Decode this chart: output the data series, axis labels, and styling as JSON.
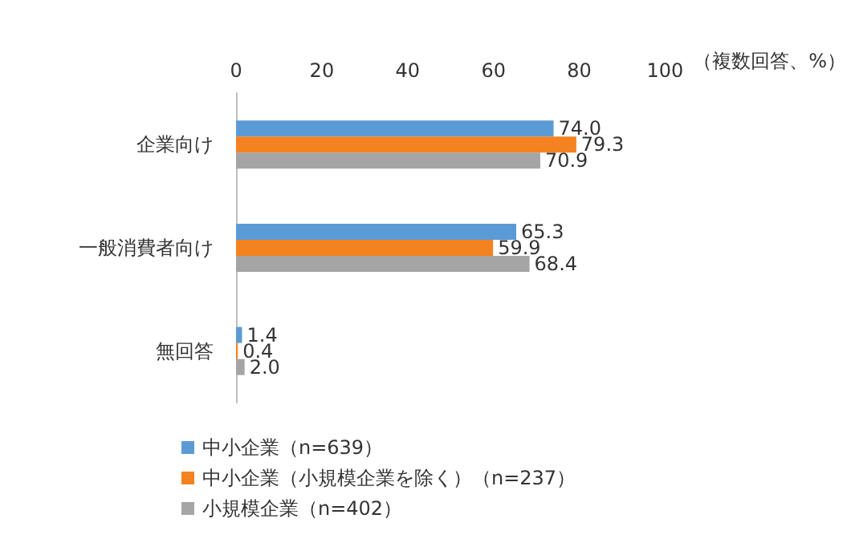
{
  "chart_data": {
    "type": "bar",
    "orientation": "horizontal",
    "xlabel": "（複数回答、%）",
    "categories": [
      "企業向け",
      "一般消費者向け",
      "無回答"
    ],
    "series": [
      {
        "name": "中小企業（n=639）",
        "color": "#5b9bd5",
        "values": [
          74.0,
          65.3,
          1.4
        ],
        "value_labels": [
          "74.0",
          "65.3",
          "1.4"
        ]
      },
      {
        "name": "中小企業（小規模企業を除く）（n=237）",
        "color": "#f58220",
        "values": [
          79.3,
          59.9,
          0.4
        ],
        "value_labels": [
          "79.3",
          "59.9",
          "0.4"
        ]
      },
      {
        "name": "小規模企業（n=402）",
        "color": "#a5a5a5",
        "values": [
          70.9,
          68.4,
          2.0
        ],
        "value_labels": [
          "70.9",
          "68.4",
          "2.0"
        ]
      }
    ],
    "xlim": [
      0,
      100
    ],
    "xticks": [
      0,
      20,
      40,
      60,
      80,
      100
    ],
    "grid": false,
    "legend": "bottom left"
  }
}
